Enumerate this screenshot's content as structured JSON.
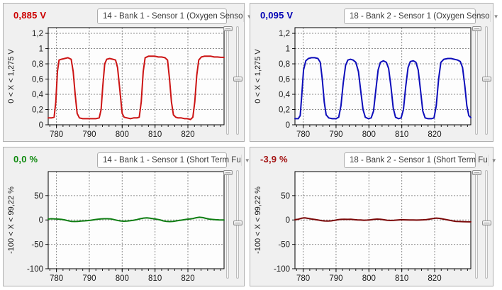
{
  "panels": [
    {
      "value": "0,885 V",
      "value_color": "#cc0000",
      "dropdown_label": "14 - Bank 1 - Sensor 1 (Oxygen Senso"
    },
    {
      "value": "0,095 V",
      "value_color": "#0000b4",
      "dropdown_label": "18 - Bank 2 - Sensor 1 (Oxygen Senso"
    },
    {
      "value": "0,0 %",
      "value_color": "#0e8a0e",
      "dropdown_label": "14 - Bank 1 - Sensor 1 (Short Term Fu"
    },
    {
      "value": "-3,9 %",
      "value_color": "#a31212",
      "dropdown_label": "18 - Bank 2 - Sensor 1 (Short Term Fu"
    }
  ],
  "icons": {
    "dropdown_arrow": "▼"
  },
  "chart_data": [
    {
      "type": "line",
      "ylabel": "0 < X < 1,275 V",
      "line_color": "#cc1414",
      "xlim": [
        777.5,
        831
      ],
      "ylim": [
        0,
        1.275
      ],
      "xticks": [
        780,
        790,
        800,
        810,
        820
      ],
      "x_minor_step": 2,
      "grid": true,
      "yticks": [
        {
          "v": 1.2,
          "label": "1,2"
        },
        {
          "v": 1,
          "label": "1"
        },
        {
          "v": 0.8,
          "label": "0,8"
        },
        {
          "v": 0.6,
          "label": "0,6"
        },
        {
          "v": 0.4,
          "label": "0,4"
        },
        {
          "v": 0.2,
          "label": "0,2"
        },
        {
          "v": 0,
          "label": "0"
        }
      ],
      "points": [
        [
          777.5,
          0.09
        ],
        [
          778.5,
          0.09
        ],
        [
          779.3,
          0.1
        ],
        [
          779.8,
          0.3
        ],
        [
          780.3,
          0.7
        ],
        [
          780.8,
          0.85
        ],
        [
          781.5,
          0.86
        ],
        [
          782.5,
          0.87
        ],
        [
          783.5,
          0.88
        ],
        [
          784.5,
          0.86
        ],
        [
          785.1,
          0.7
        ],
        [
          785.7,
          0.4
        ],
        [
          786.3,
          0.15
        ],
        [
          787,
          0.09
        ],
        [
          788,
          0.08
        ],
        [
          789,
          0.08
        ],
        [
          790,
          0.08
        ],
        [
          791,
          0.08
        ],
        [
          792,
          0.08
        ],
        [
          793,
          0.09
        ],
        [
          793.6,
          0.2
        ],
        [
          794.1,
          0.5
        ],
        [
          794.7,
          0.8
        ],
        [
          795.3,
          0.86
        ],
        [
          796.2,
          0.87
        ],
        [
          797.2,
          0.86
        ],
        [
          798,
          0.85
        ],
        [
          798.6,
          0.75
        ],
        [
          799.3,
          0.45
        ],
        [
          800,
          0.15
        ],
        [
          800.6,
          0.1
        ],
        [
          801.5,
          0.09
        ],
        [
          802.5,
          0.08
        ],
        [
          803.5,
          0.09
        ],
        [
          804.5,
          0.09
        ],
        [
          805.2,
          0.1
        ],
        [
          805.8,
          0.3
        ],
        [
          806.4,
          0.7
        ],
        [
          807,
          0.88
        ],
        [
          808,
          0.9
        ],
        [
          809,
          0.9
        ],
        [
          810,
          0.9
        ],
        [
          811,
          0.89
        ],
        [
          812,
          0.89
        ],
        [
          813,
          0.88
        ],
        [
          813.8,
          0.85
        ],
        [
          814.4,
          0.6
        ],
        [
          815,
          0.3
        ],
        [
          815.6,
          0.13
        ],
        [
          816.3,
          0.1
        ],
        [
          817,
          0.09
        ],
        [
          818,
          0.09
        ],
        [
          819,
          0.08
        ],
        [
          820,
          0.08
        ],
        [
          820.8,
          0.07
        ],
        [
          821.5,
          0.1
        ],
        [
          822.1,
          0.3
        ],
        [
          822.7,
          0.65
        ],
        [
          823.3,
          0.85
        ],
        [
          824.1,
          0.89
        ],
        [
          825,
          0.9
        ],
        [
          826,
          0.9
        ],
        [
          827,
          0.9
        ],
        [
          828,
          0.89
        ],
        [
          829,
          0.89
        ],
        [
          830,
          0.885
        ],
        [
          831,
          0.885
        ]
      ]
    },
    {
      "type": "line",
      "ylabel": "0 < X < 1,275 V",
      "line_color": "#0d0dba",
      "xlim": [
        777.5,
        831
      ],
      "ylim": [
        0,
        1.275
      ],
      "xticks": [
        780,
        790,
        800,
        810,
        820
      ],
      "x_minor_step": 2,
      "grid": true,
      "yticks": [
        {
          "v": 1.2,
          "label": "1,2"
        },
        {
          "v": 1,
          "label": "1"
        },
        {
          "v": 0.8,
          "label": "0,8"
        },
        {
          "v": 0.6,
          "label": "0,6"
        },
        {
          "v": 0.4,
          "label": "0,4"
        },
        {
          "v": 0.2,
          "label": "0,2"
        },
        {
          "v": 0,
          "label": "0"
        }
      ],
      "points": [
        [
          777.5,
          0.08
        ],
        [
          778.5,
          0.08
        ],
        [
          779.1,
          0.12
        ],
        [
          779.6,
          0.4
        ],
        [
          780.1,
          0.72
        ],
        [
          780.8,
          0.84
        ],
        [
          781.6,
          0.87
        ],
        [
          782.5,
          0.88
        ],
        [
          783.5,
          0.88
        ],
        [
          784.5,
          0.87
        ],
        [
          785.2,
          0.82
        ],
        [
          785.8,
          0.6
        ],
        [
          786.4,
          0.3
        ],
        [
          787,
          0.13
        ],
        [
          787.8,
          0.09
        ],
        [
          788.8,
          0.08
        ],
        [
          790,
          0.08
        ],
        [
          790.8,
          0.1
        ],
        [
          791.5,
          0.25
        ],
        [
          792.2,
          0.55
        ],
        [
          792.9,
          0.78
        ],
        [
          793.6,
          0.85
        ],
        [
          794.4,
          0.86
        ],
        [
          795.2,
          0.85
        ],
        [
          796,
          0.82
        ],
        [
          796.8,
          0.7
        ],
        [
          797.5,
          0.45
        ],
        [
          798.2,
          0.2
        ],
        [
          798.9,
          0.1
        ],
        [
          799.8,
          0.08
        ],
        [
          800.7,
          0.09
        ],
        [
          801.4,
          0.18
        ],
        [
          802.1,
          0.45
        ],
        [
          802.8,
          0.72
        ],
        [
          803.5,
          0.82
        ],
        [
          804.4,
          0.84
        ],
        [
          805.3,
          0.82
        ],
        [
          806,
          0.74
        ],
        [
          806.7,
          0.5
        ],
        [
          807.4,
          0.22
        ],
        [
          808.1,
          0.1
        ],
        [
          809,
          0.08
        ],
        [
          809.8,
          0.09
        ],
        [
          810.5,
          0.2
        ],
        [
          811.2,
          0.5
        ],
        [
          811.9,
          0.75
        ],
        [
          812.6,
          0.83
        ],
        [
          813.5,
          0.84
        ],
        [
          814.3,
          0.82
        ],
        [
          815,
          0.72
        ],
        [
          815.7,
          0.45
        ],
        [
          816.4,
          0.18
        ],
        [
          817.1,
          0.09
        ],
        [
          818,
          0.08
        ],
        [
          819,
          0.08
        ],
        [
          819.8,
          0.09
        ],
        [
          820.5,
          0.25
        ],
        [
          821.2,
          0.6
        ],
        [
          821.9,
          0.82
        ],
        [
          822.8,
          0.86
        ],
        [
          824,
          0.87
        ],
        [
          825,
          0.87
        ],
        [
          826,
          0.86
        ],
        [
          827,
          0.85
        ],
        [
          827.8,
          0.83
        ],
        [
          828.5,
          0.75
        ],
        [
          829.2,
          0.5
        ],
        [
          829.8,
          0.25
        ],
        [
          830.4,
          0.12
        ],
        [
          831,
          0.095
        ]
      ]
    },
    {
      "type": "line",
      "ylabel": "-100 < X < 99,22 %",
      "line_color": "#0e7d12",
      "xlim": [
        777.5,
        831
      ],
      "ylim": [
        -100,
        99.22
      ],
      "xticks": [
        780,
        790,
        800,
        810,
        820
      ],
      "x_minor_step": 2,
      "grid": true,
      "yticks": [
        {
          "v": 50,
          "label": "50"
        },
        {
          "v": 0,
          "label": "0"
        },
        {
          "v": -50,
          "label": "-50"
        },
        {
          "v": -100,
          "label": "-100"
        }
      ],
      "points": [
        [
          777.5,
          2
        ],
        [
          778.5,
          2.5
        ],
        [
          779.5,
          2.2
        ],
        [
          780.5,
          1.8
        ],
        [
          781.5,
          1.2
        ],
        [
          782.5,
          0.2
        ],
        [
          783.5,
          -1.5
        ],
        [
          784.5,
          -2.8
        ],
        [
          785.5,
          -3.2
        ],
        [
          786.5,
          -2.8
        ],
        [
          787.5,
          -2.2
        ],
        [
          788.5,
          -1.8
        ],
        [
          789.5,
          -1.2
        ],
        [
          790.5,
          -0.5
        ],
        [
          791.5,
          0.5
        ],
        [
          792.5,
          1.5
        ],
        [
          793.5,
          2.2
        ],
        [
          794.5,
          2.5
        ],
        [
          795.5,
          2.5
        ],
        [
          796.5,
          2.2
        ],
        [
          797.5,
          0.8
        ],
        [
          798.5,
          -0.8
        ],
        [
          799.5,
          -2
        ],
        [
          800.5,
          -2.5
        ],
        [
          801.5,
          -2.2
        ],
        [
          802.5,
          -1.5
        ],
        [
          803.5,
          -0.5
        ],
        [
          804.5,
          0.8
        ],
        [
          805.5,
          2.5
        ],
        [
          806.5,
          3.8
        ],
        [
          807.5,
          4.2
        ],
        [
          808.5,
          3.5
        ],
        [
          809.5,
          2.5
        ],
        [
          810.5,
          1.5
        ],
        [
          811.5,
          0.2
        ],
        [
          812.5,
          -1.8
        ],
        [
          813.5,
          -3
        ],
        [
          814.5,
          -3.3
        ],
        [
          815.5,
          -2.8
        ],
        [
          816.5,
          -1.8
        ],
        [
          817.5,
          -0.8
        ],
        [
          818.5,
          0.2
        ],
        [
          819.5,
          1.2
        ],
        [
          820.5,
          2
        ],
        [
          821.5,
          3
        ],
        [
          822.5,
          4.5
        ],
        [
          823.5,
          5.5
        ],
        [
          824.5,
          4.8
        ],
        [
          825.5,
          3.2
        ],
        [
          826.5,
          1.8
        ],
        [
          827.5,
          1
        ],
        [
          828.5,
          0.5
        ],
        [
          829.5,
          0.2
        ],
        [
          831,
          0
        ]
      ]
    },
    {
      "type": "line",
      "ylabel": "-100 < X < 99,22 %",
      "line_color": "#7a0707",
      "xlim": [
        777.5,
        831
      ],
      "ylim": [
        -100,
        99.22
      ],
      "xticks": [
        780,
        790,
        800,
        810,
        820
      ],
      "x_minor_step": 2,
      "grid": true,
      "yticks": [
        {
          "v": 50,
          "label": "50"
        },
        {
          "v": 0,
          "label": "0"
        },
        {
          "v": -50,
          "label": "-50"
        },
        {
          "v": -100,
          "label": "-100"
        }
      ],
      "points": [
        [
          777.5,
          0.5
        ],
        [
          778.5,
          1.5
        ],
        [
          779.5,
          3.5
        ],
        [
          780.5,
          4.2
        ],
        [
          781.5,
          3.2
        ],
        [
          782.5,
          2
        ],
        [
          783.5,
          1
        ],
        [
          784.5,
          0
        ],
        [
          785.5,
          -1.2
        ],
        [
          786.5,
          -2
        ],
        [
          787.5,
          -2.2
        ],
        [
          788.5,
          -1.8
        ],
        [
          789.5,
          -0.8
        ],
        [
          790.5,
          0.5
        ],
        [
          791.5,
          1.2
        ],
        [
          792.5,
          1.5
        ],
        [
          793.5,
          1.2
        ],
        [
          794.5,
          1.3
        ],
        [
          795.5,
          0.8
        ],
        [
          796.5,
          0.2
        ],
        [
          797.5,
          0
        ],
        [
          798.5,
          -0.5
        ],
        [
          799.5,
          -0.2
        ],
        [
          800.5,
          0.3
        ],
        [
          801.5,
          1.2
        ],
        [
          802.5,
          1.8
        ],
        [
          803.5,
          1.5
        ],
        [
          804.5,
          0.5
        ],
        [
          805.5,
          -0.5
        ],
        [
          806.5,
          -1
        ],
        [
          807.5,
          -0.8
        ],
        [
          808.5,
          -0.2
        ],
        [
          809.5,
          0.3
        ],
        [
          810.5,
          0.4
        ],
        [
          811.5,
          0.2
        ],
        [
          812.5,
          0
        ],
        [
          813.5,
          0
        ],
        [
          814.5,
          -0.2
        ],
        [
          815.5,
          0
        ],
        [
          816.5,
          0.3
        ],
        [
          817.5,
          0.8
        ],
        [
          818.5,
          1.8
        ],
        [
          819.5,
          3
        ],
        [
          820.5,
          3.8
        ],
        [
          821.5,
          3.2
        ],
        [
          822.5,
          2
        ],
        [
          823.5,
          0.8
        ],
        [
          824.5,
          -0.5
        ],
        [
          825.5,
          -1.8
        ],
        [
          826.5,
          -2.8
        ],
        [
          827.5,
          -3.2
        ],
        [
          828.5,
          -3.5
        ],
        [
          829.5,
          -3.7
        ],
        [
          831,
          -3.9
        ]
      ]
    }
  ]
}
